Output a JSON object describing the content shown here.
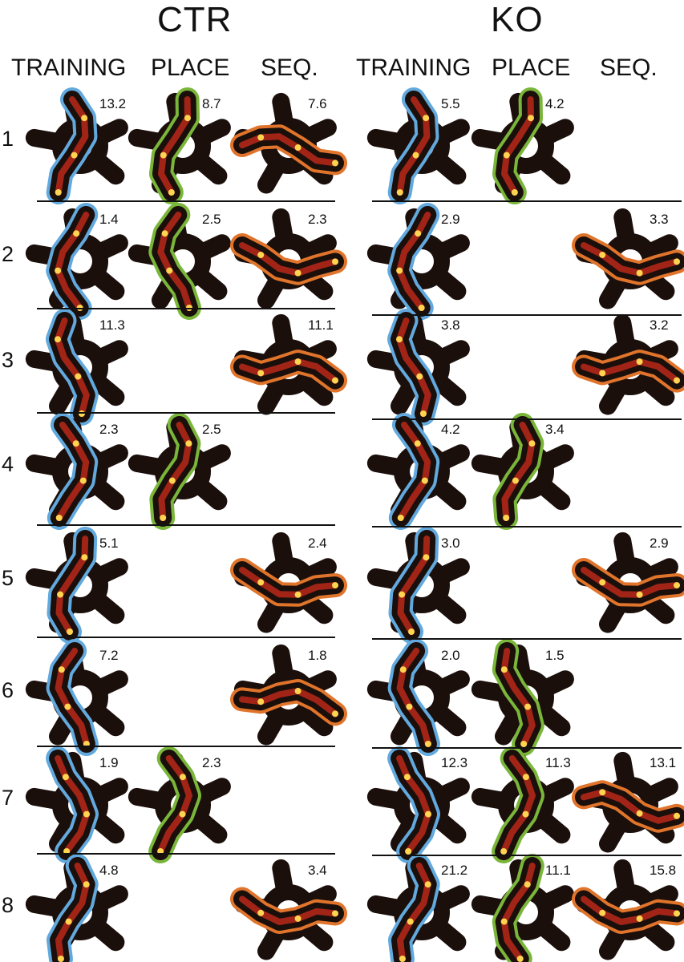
{
  "groups": [
    {
      "title": "CTR",
      "columns": [
        "TRAINING",
        "PLACE",
        "SEQ."
      ]
    },
    {
      "title": "KO",
      "columns": [
        "TRAINING",
        "PLACE",
        "SEQ."
      ]
    }
  ],
  "colors": {
    "maze": "#1b0f0c",
    "training": "#62a9de",
    "place": "#7ab63a",
    "seq": "#e0742b",
    "hot": "#ffd451",
    "warm": "#b8281a",
    "divider": "#111111"
  },
  "rows": [
    {
      "label": "1",
      "ctr": {
        "training": "13.2",
        "place": "8.7",
        "seq": "7.6"
      },
      "ko": {
        "training": "5.5",
        "place": "4.2",
        "seq": null
      }
    },
    {
      "label": "2",
      "ctr": {
        "training": "1.4",
        "place": "2.5",
        "seq": "2.3"
      },
      "ko": {
        "training": "2.9",
        "place": null,
        "seq": "3.3"
      }
    },
    {
      "label": "3",
      "ctr": {
        "training": "11.3",
        "place": null,
        "seq": "11.1"
      },
      "ko": {
        "training": "3.8",
        "place": null,
        "seq": "3.2"
      }
    },
    {
      "label": "4",
      "ctr": {
        "training": "2.3",
        "place": "2.5",
        "seq": null
      },
      "ko": {
        "training": "4.2",
        "place": "3.4",
        "seq": null
      }
    },
    {
      "label": "5",
      "ctr": {
        "training": "5.1",
        "place": null,
        "seq": "2.4"
      },
      "ko": {
        "training": "3.0",
        "place": null,
        "seq": "2.9"
      }
    },
    {
      "label": "6",
      "ctr": {
        "training": "7.2",
        "place": null,
        "seq": "1.8"
      },
      "ko": {
        "training": "2.0",
        "place": "1.5",
        "seq": null
      }
    },
    {
      "label": "7",
      "ctr": {
        "training": "1.9",
        "place": "2.3",
        "seq": null
      },
      "ko": {
        "training": "12.3",
        "place": "11.3",
        "seq": "13.1"
      }
    },
    {
      "label": "8",
      "ctr": {
        "training": "4.8",
        "place": null,
        "seq": "3.4"
      },
      "ko": {
        "training": "21.2",
        "place": "11.1",
        "seq": "15.8"
      }
    }
  ]
}
